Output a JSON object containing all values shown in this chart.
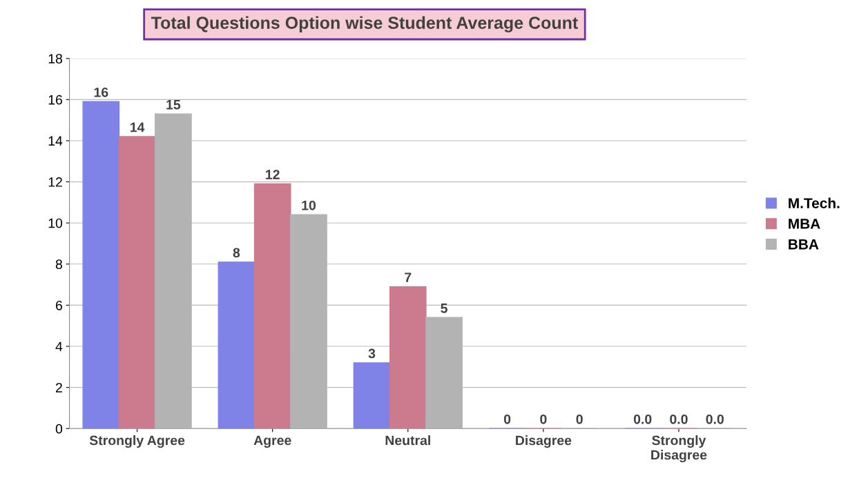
{
  "chart_data": {
    "type": "bar",
    "title": "Total Questions Option wise Student Average Count",
    "categories": [
      "Strongly Agree",
      "Agree",
      "Neutral",
      "Disagree",
      "Strongly Disagree"
    ],
    "series": [
      {
        "name": "M.Tech.",
        "color": "#7f82e6",
        "values": [
          15.9,
          8.1,
          3.2,
          0,
          0
        ],
        "value_labels": [
          "16",
          "8",
          "3",
          "0",
          "0.0"
        ]
      },
      {
        "name": "MBA",
        "color": "#cc7a8e",
        "values": [
          14.2,
          11.9,
          6.9,
          0,
          0
        ],
        "value_labels": [
          "14",
          "12",
          "7",
          "0",
          "0.0"
        ]
      },
      {
        "name": "BBA",
        "color": "#b3b3b3",
        "values": [
          15.3,
          10.4,
          5.4,
          0,
          0
        ],
        "value_labels": [
          "15",
          "10",
          "5",
          "0",
          "0.0"
        ]
      }
    ],
    "ylim": [
      0,
      18
    ],
    "yticks": [
      0,
      2,
      4,
      6,
      8,
      10,
      12,
      14,
      16,
      18
    ],
    "grid": "y",
    "legend": "right"
  }
}
